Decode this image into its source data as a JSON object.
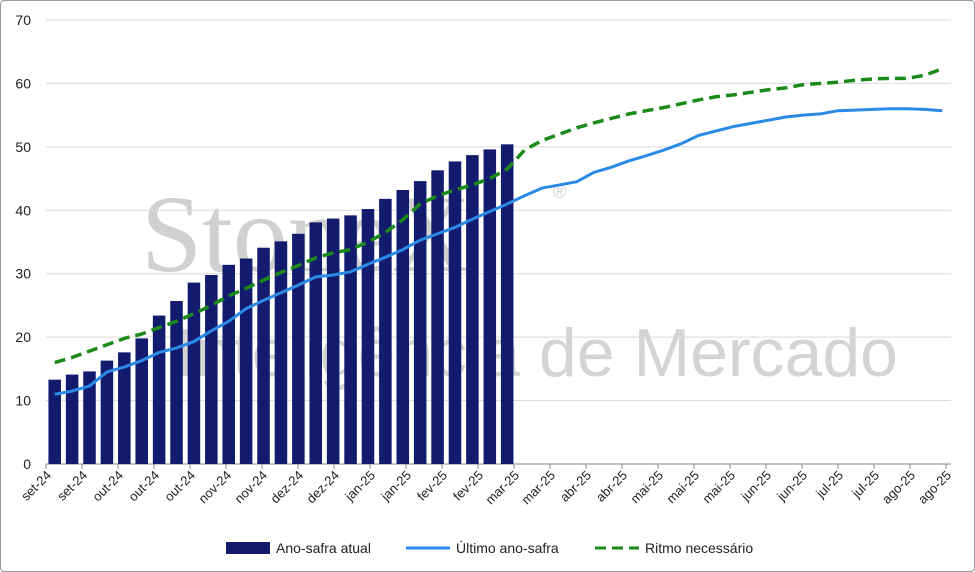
{
  "chart_data": {
    "type": "bar_line",
    "watermark": [
      "StoneX",
      "®",
      "Inteligência de Mercado"
    ],
    "x_tick_labels": [
      "set-24",
      "set-24",
      "out-24",
      "out-24",
      "out-24",
      "nov-24",
      "nov-24",
      "dez-24",
      "dez-24",
      "jan-25",
      "jan-25",
      "fev-25",
      "fev-25",
      "mar-25",
      "mar-25",
      "abr-25",
      "abr-25",
      "mai-25",
      "mai-25",
      "mai-25",
      "jun-25",
      "jun-25",
      "jul-25",
      "jul-25",
      "ago-25",
      "ago-25"
    ],
    "ylim": [
      0,
      70
    ],
    "yticks": [
      0,
      10,
      20,
      30,
      40,
      50,
      60,
      70
    ],
    "grid": true,
    "series": [
      {
        "name": "Ano-safra atual",
        "type": "bar",
        "color": "#131b6e",
        "values": [
          13.3,
          14.1,
          14.6,
          16.3,
          17.6,
          19.8,
          23.4,
          25.7,
          28.6,
          29.8,
          31.4,
          32.4,
          34.1,
          35.1,
          36.3,
          38.1,
          38.7,
          39.2,
          40.2,
          41.8,
          43.2,
          44.6,
          46.3,
          47.7,
          48.7,
          49.6,
          50.4
        ]
      },
      {
        "name": "Último ano-safra",
        "type": "line",
        "color": "#2b8ae6",
        "values": [
          11.0,
          11.5,
          12.3,
          14.5,
          15.3,
          16.3,
          17.6,
          18.3,
          19.3,
          21.0,
          22.5,
          24.5,
          25.8,
          27.0,
          28.2,
          29.5,
          29.8,
          30.3,
          31.5,
          32.6,
          33.8,
          35.3,
          36.3,
          37.3,
          38.6,
          39.8,
          41.0,
          42.3,
          43.5,
          44.0,
          44.5,
          46.0,
          46.8,
          47.8,
          48.6,
          49.5,
          50.5,
          51.8,
          52.5,
          53.2,
          53.7,
          54.2,
          54.7,
          55.0,
          55.2,
          55.7,
          55.8,
          55.9,
          56.0,
          56.0,
          55.9,
          55.7
        ]
      },
      {
        "name": "Ritmo necessário",
        "type": "dashed",
        "color": "#1a8a1a",
        "values": [
          16.0,
          16.8,
          17.8,
          18.8,
          19.8,
          20.5,
          21.5,
          22.5,
          23.7,
          25.0,
          26.5,
          27.7,
          29.0,
          30.2,
          31.3,
          32.5,
          33.3,
          33.8,
          35.0,
          36.5,
          38.5,
          41.0,
          42.3,
          43.2,
          44.0,
          45.0,
          46.5,
          49.5,
          51.0,
          52.0,
          53.0,
          53.8,
          54.5,
          55.2,
          55.7,
          56.2,
          56.8,
          57.4,
          57.9,
          58.2,
          58.6,
          59.0,
          59.3,
          59.8,
          60.0,
          60.2,
          60.5,
          60.7,
          60.8,
          60.8,
          61.3,
          62.3
        ]
      }
    ]
  }
}
